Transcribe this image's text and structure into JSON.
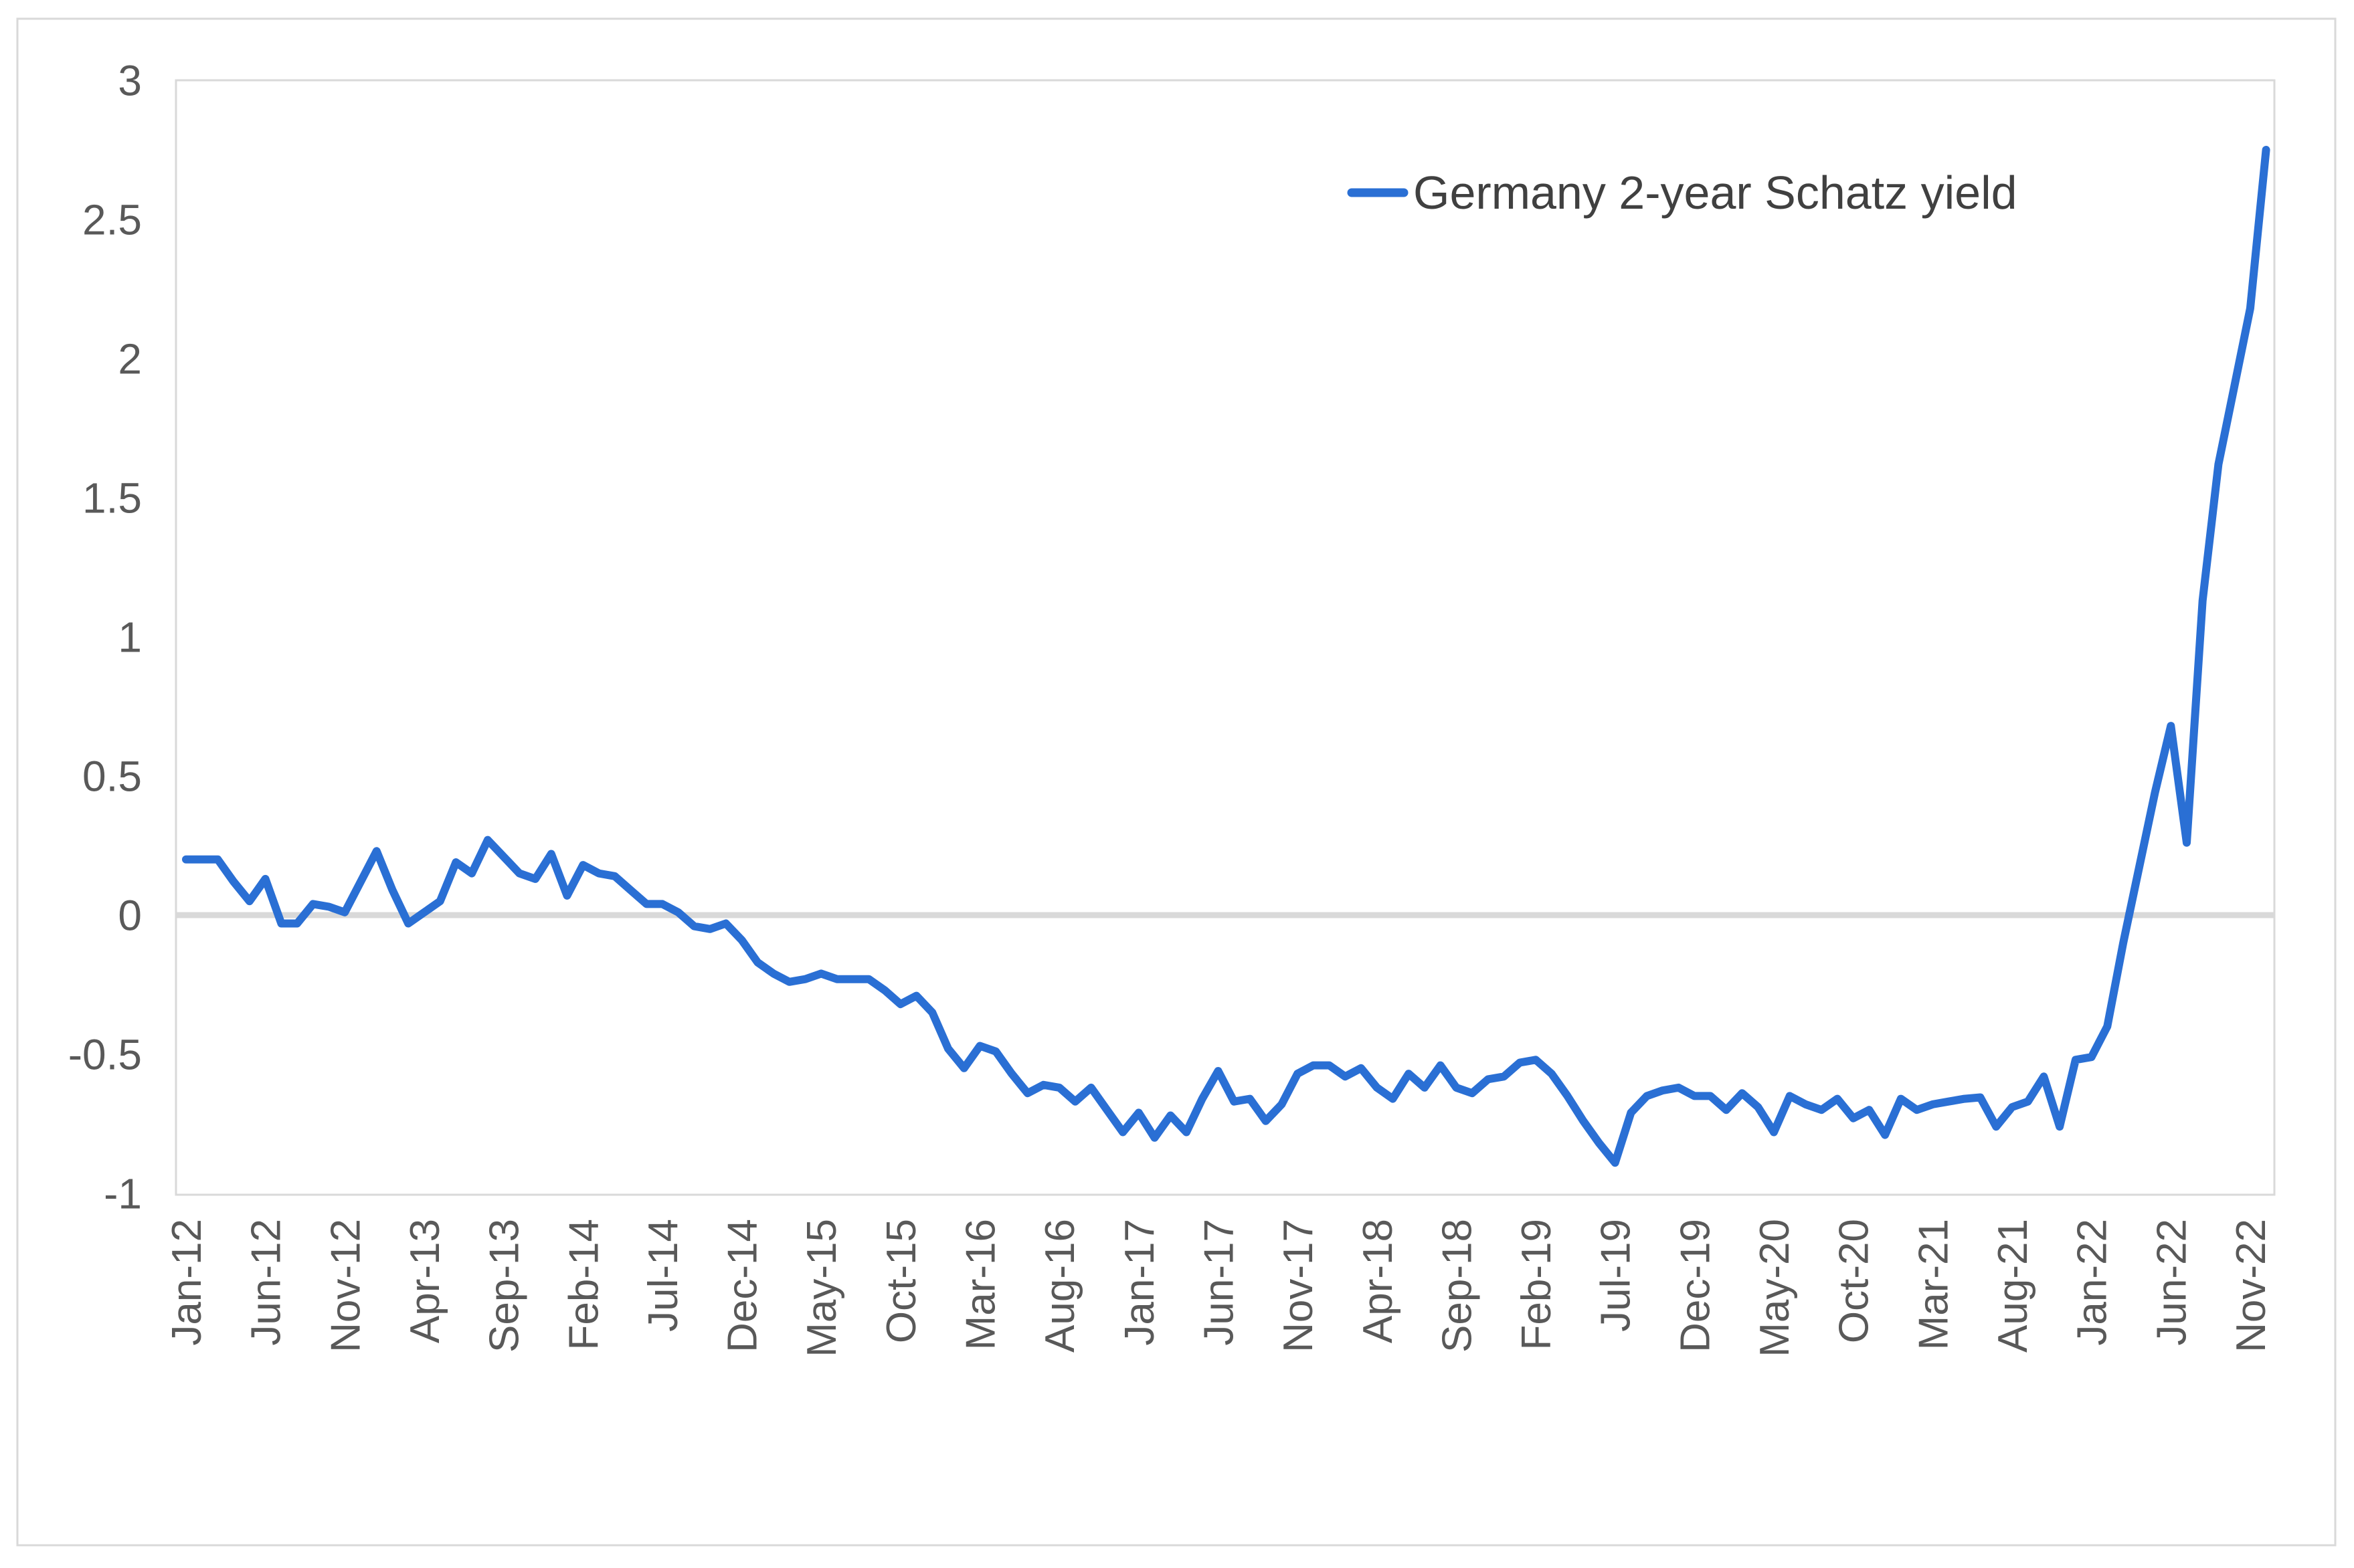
{
  "legend": {
    "label": "Germany 2-year Schatz yield"
  },
  "colors": {
    "series": "#2a6fd4",
    "grid": "#d9d9d9",
    "zero_line": "#d9d9d9",
    "tick_text": "#595959",
    "legend_text": "#404040",
    "frame": "#d9d9d9",
    "background": "#ffffff"
  },
  "chart_data": {
    "type": "line",
    "title": "",
    "xlabel": "",
    "ylabel": "",
    "ylim": [
      -1,
      3
    ],
    "y_ticks": [
      3,
      2.5,
      2,
      1.5,
      1,
      0.5,
      0,
      -0.5,
      -1
    ],
    "grid": "zero-line-only",
    "legend_position": "top-right",
    "x_tick_interval": 5,
    "x_tick_labels": [
      "Jan-12",
      "Jun-12",
      "Nov-12",
      "Apr-13",
      "Sep-13",
      "Feb-14",
      "Jul-14",
      "Dec-14",
      "May-15",
      "Oct-15",
      "Mar-16",
      "Aug-16",
      "Jan-17",
      "Jun-17",
      "Nov-17",
      "Apr-18",
      "Sep-18",
      "Feb-19",
      "Jul-19",
      "Dec-19",
      "May-20",
      "Oct-20",
      "Mar-21",
      "Aug-21",
      "Jan-22",
      "Jun-22",
      "Nov-22"
    ],
    "x": [
      "Jan-12",
      "Feb-12",
      "Mar-12",
      "Apr-12",
      "May-12",
      "Jun-12",
      "Jul-12",
      "Aug-12",
      "Sep-12",
      "Oct-12",
      "Nov-12",
      "Dec-12",
      "Jan-13",
      "Feb-13",
      "Mar-13",
      "Apr-13",
      "May-13",
      "Jun-13",
      "Jul-13",
      "Aug-13",
      "Sep-13",
      "Oct-13",
      "Nov-13",
      "Dec-13",
      "Jan-14",
      "Feb-14",
      "Mar-14",
      "Apr-14",
      "May-14",
      "Jun-14",
      "Jul-14",
      "Aug-14",
      "Sep-14",
      "Oct-14",
      "Nov-14",
      "Dec-14",
      "Jan-15",
      "Feb-15",
      "Mar-15",
      "Apr-15",
      "May-15",
      "Jun-15",
      "Jul-15",
      "Aug-15",
      "Sep-15",
      "Oct-15",
      "Nov-15",
      "Dec-15",
      "Jan-16",
      "Feb-16",
      "Mar-16",
      "Apr-16",
      "May-16",
      "Jun-16",
      "Jul-16",
      "Aug-16",
      "Sep-16",
      "Oct-16",
      "Nov-16",
      "Dec-16",
      "Jan-17",
      "Feb-17",
      "Mar-17",
      "Apr-17",
      "May-17",
      "Jun-17",
      "Jul-17",
      "Aug-17",
      "Sep-17",
      "Oct-17",
      "Nov-17",
      "Dec-17",
      "Jan-18",
      "Feb-18",
      "Mar-18",
      "Apr-18",
      "May-18",
      "Jun-18",
      "Jul-18",
      "Aug-18",
      "Sep-18",
      "Oct-18",
      "Nov-18",
      "Dec-18",
      "Jan-19",
      "Feb-19",
      "Mar-19",
      "Apr-19",
      "May-19",
      "Jun-19",
      "Jul-19",
      "Aug-19",
      "Sep-19",
      "Oct-19",
      "Nov-19",
      "Dec-19",
      "Jan-20",
      "Feb-20",
      "Mar-20",
      "Apr-20",
      "May-20",
      "Jun-20",
      "Jul-20",
      "Aug-20",
      "Sep-20",
      "Oct-20",
      "Nov-20",
      "Dec-20",
      "Jan-21",
      "Feb-21",
      "Mar-21",
      "Apr-21",
      "May-21",
      "Jun-21",
      "Jul-21",
      "Aug-21",
      "Sep-21",
      "Oct-21",
      "Nov-21",
      "Dec-21",
      "Jan-22",
      "Feb-22",
      "Mar-22",
      "Apr-22",
      "May-22",
      "Jun-22",
      "Jul-22",
      "Aug-22",
      "Sep-22",
      "Oct-22",
      "Nov-22",
      "Dec-22"
    ],
    "series": [
      {
        "name": "Germany 2-year Schatz yield",
        "values": [
          0.2,
          0.2,
          0.2,
          0.12,
          0.05,
          0.13,
          -0.03,
          -0.03,
          0.04,
          0.03,
          0.01,
          0.12,
          0.23,
          0.09,
          -0.03,
          0.01,
          0.05,
          0.19,
          0.15,
          0.27,
          0.21,
          0.15,
          0.13,
          0.22,
          0.07,
          0.18,
          0.15,
          0.14,
          0.09,
          0.04,
          0.04,
          0.01,
          -0.04,
          -0.05,
          -0.03,
          -0.09,
          -0.17,
          -0.21,
          -0.24,
          -0.23,
          -0.21,
          -0.23,
          -0.23,
          -0.23,
          -0.27,
          -0.32,
          -0.29,
          -0.35,
          -0.48,
          -0.55,
          -0.47,
          -0.49,
          -0.57,
          -0.64,
          -0.61,
          -0.62,
          -0.67,
          -0.62,
          -0.7,
          -0.78,
          -0.71,
          -0.8,
          -0.72,
          -0.78,
          -0.66,
          -0.56,
          -0.67,
          -0.66,
          -0.74,
          -0.68,
          -0.57,
          -0.54,
          -0.54,
          -0.58,
          -0.55,
          -0.62,
          -0.66,
          -0.57,
          -0.62,
          -0.54,
          -0.62,
          -0.64,
          -0.59,
          -0.58,
          -0.53,
          -0.52,
          -0.57,
          -0.65,
          -0.74,
          -0.82,
          -0.89,
          -0.71,
          -0.65,
          -0.63,
          -0.62,
          -0.65,
          -0.65,
          -0.7,
          -0.64,
          -0.69,
          -0.78,
          -0.65,
          -0.68,
          -0.7,
          -0.66,
          -0.73,
          -0.7,
          -0.79,
          -0.66,
          -0.7,
          -0.68,
          -0.67,
          -0.66,
          -0.655,
          -0.76,
          -0.69,
          -0.67,
          -0.58,
          -0.76,
          -0.52,
          -0.51,
          -0.4,
          -0.1,
          0.17,
          0.44,
          0.68,
          0.26,
          1.13,
          1.62,
          1.9,
          2.18,
          2.75
        ]
      }
    ]
  }
}
